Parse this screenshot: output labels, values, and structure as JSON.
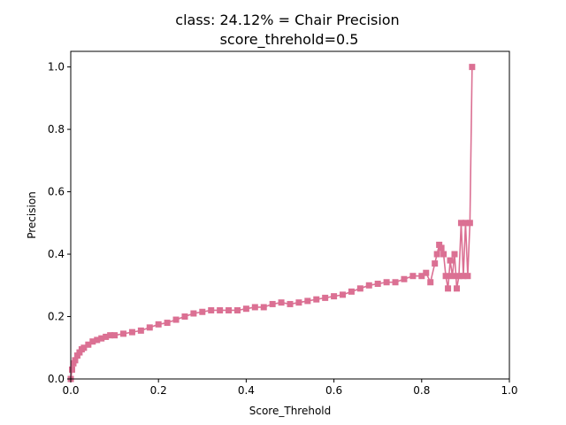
{
  "chart_data": {
    "type": "line",
    "title_line1": "class: 24.12% = Chair Precision",
    "title_line2": "score_threhold=0.5",
    "xlabel": "Score_Threhold",
    "ylabel": "Precision",
    "xlim": [
      0.0,
      1.0
    ],
    "ylim": [
      0.0,
      1.05
    ],
    "xticks": [
      "0.0",
      "0.2",
      "0.4",
      "0.6",
      "0.8",
      "1.0"
    ],
    "yticks": [
      "0.0",
      "0.2",
      "0.4",
      "0.6",
      "0.8",
      "1.0"
    ],
    "grid": false,
    "marker": "square",
    "color": "#db7093",
    "series": [
      {
        "x": [
          0.0,
          0.003,
          0.006,
          0.01,
          0.015,
          0.02,
          0.025,
          0.03,
          0.04,
          0.05,
          0.06,
          0.07,
          0.08,
          0.09,
          0.1,
          0.12,
          0.14,
          0.16,
          0.18,
          0.2,
          0.22,
          0.24,
          0.26,
          0.28,
          0.3,
          0.32,
          0.34,
          0.36,
          0.38,
          0.4,
          0.42,
          0.44,
          0.46,
          0.48,
          0.5,
          0.52,
          0.54,
          0.56,
          0.58,
          0.6,
          0.62,
          0.64,
          0.66,
          0.68,
          0.7,
          0.72,
          0.74,
          0.76,
          0.78,
          0.8,
          0.81,
          0.82,
          0.83,
          0.835,
          0.84,
          0.845,
          0.85,
          0.855,
          0.86,
          0.865,
          0.87,
          0.875,
          0.88,
          0.885,
          0.89,
          0.895,
          0.9,
          0.905,
          0.91,
          0.915
        ],
        "y": [
          0.0,
          0.03,
          0.05,
          0.06,
          0.075,
          0.085,
          0.095,
          0.1,
          0.11,
          0.12,
          0.125,
          0.13,
          0.135,
          0.14,
          0.14,
          0.145,
          0.15,
          0.155,
          0.165,
          0.175,
          0.18,
          0.19,
          0.2,
          0.21,
          0.215,
          0.22,
          0.22,
          0.22,
          0.22,
          0.225,
          0.23,
          0.23,
          0.24,
          0.245,
          0.24,
          0.245,
          0.25,
          0.255,
          0.26,
          0.265,
          0.27,
          0.28,
          0.29,
          0.3,
          0.305,
          0.31,
          0.31,
          0.32,
          0.33,
          0.33,
          0.34,
          0.31,
          0.37,
          0.4,
          0.43,
          0.42,
          0.4,
          0.33,
          0.29,
          0.38,
          0.33,
          0.4,
          0.29,
          0.33,
          0.5,
          0.33,
          0.5,
          0.33,
          0.5,
          1.0
        ]
      }
    ]
  }
}
